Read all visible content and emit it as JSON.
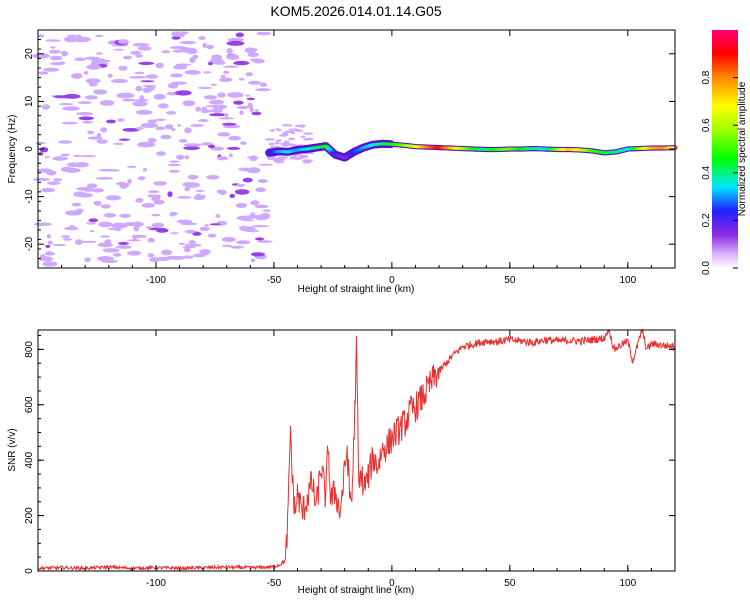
{
  "title": "KOM5.2026.014.01.14.G05",
  "chart_data": [
    {
      "type": "heatmap",
      "title": "KOM5.2026.014.01.14.G05",
      "xlabel": "Height of straight line (km)",
      "ylabel": "Frequency (Hz)",
      "xlim": [
        -150,
        120
      ],
      "ylim": [
        -25,
        25
      ],
      "xticks": [
        -100,
        -50,
        0,
        50,
        100
      ],
      "yticks": [
        -20,
        -10,
        0,
        10,
        20
      ],
      "track": {
        "x": [
          -52,
          -48,
          -44,
          -40,
          -36,
          -32,
          -28,
          -24,
          -20,
          -16,
          -12,
          -8,
          -4,
          0,
          5,
          10,
          15,
          20,
          25,
          30,
          35,
          40,
          45,
          50,
          55,
          60,
          65,
          70,
          75,
          80,
          85,
          90,
          95,
          100,
          105,
          110,
          115,
          120
        ],
        "freq": [
          -0.8,
          -0.5,
          -0.6,
          -0.2,
          0.0,
          0.3,
          0.6,
          -1.2,
          -1.8,
          -0.6,
          0.3,
          0.9,
          1.1,
          1.0,
          0.8,
          0.5,
          0.4,
          0.3,
          0.2,
          0.1,
          0.0,
          -0.1,
          -0.1,
          0.0,
          0.0,
          0.1,
          0.0,
          -0.1,
          -0.1,
          -0.2,
          -0.4,
          -0.8,
          -0.6,
          0.0,
          0.1,
          0.2,
          0.2,
          0.3
        ],
        "amplitude": [
          0.2,
          0.3,
          0.35,
          0.3,
          0.35,
          0.4,
          0.45,
          0.2,
          0.15,
          0.25,
          0.3,
          0.35,
          0.4,
          0.45,
          0.55,
          0.65,
          0.8,
          0.9,
          0.75,
          0.6,
          0.45,
          0.4,
          0.5,
          0.55,
          0.45,
          0.4,
          0.35,
          0.55,
          0.75,
          0.65,
          0.5,
          0.45,
          0.4,
          0.35,
          0.55,
          0.75,
          0.8,
          0.65
        ]
      },
      "colorbar": {
        "label": "Normalized spectral amplitude",
        "range": [
          0,
          1
        ],
        "ticks": [
          0.0,
          0.2,
          0.4,
          0.6,
          0.8
        ],
        "tick_labels": [
          "0.0",
          "0.2",
          "0.4",
          "0.6",
          "0.8"
        ]
      }
    },
    {
      "type": "line",
      "xlabel": "Height of straight line (km)",
      "ylabel": "SNR (v/v)",
      "xlim": [
        -150,
        120
      ],
      "ylim": [
        0,
        870
      ],
      "xticks": [
        -100,
        -50,
        0,
        50,
        100
      ],
      "yticks": [
        0,
        200,
        400,
        600,
        800
      ],
      "color": "#e83030",
      "series": [
        {
          "name": "SNR",
          "x": [
            -150,
            -140,
            -130,
            -120,
            -110,
            -100,
            -90,
            -80,
            -70,
            -60,
            -50,
            -47,
            -45,
            -44,
            -43,
            -42,
            -41,
            -40,
            -38,
            -36,
            -34,
            -32,
            -30,
            -28,
            -27,
            -26,
            -24,
            -22,
            -20,
            -19,
            -18,
            -17,
            -16,
            -15,
            -14,
            -13,
            -12,
            -10,
            -8,
            -6,
            -4,
            -2,
            0,
            2,
            4,
            6,
            8,
            10,
            14,
            18,
            22,
            26,
            30,
            35,
            40,
            45,
            50,
            55,
            60,
            65,
            70,
            75,
            80,
            85,
            90,
            92,
            94,
            96,
            98,
            100,
            102,
            104,
            106,
            108,
            110,
            115,
            120
          ],
          "y": [
            10,
            12,
            10,
            14,
            10,
            12,
            10,
            12,
            14,
            12,
            15,
            25,
            40,
            200,
            520,
            300,
            210,
            280,
            210,
            260,
            320,
            230,
            380,
            260,
            470,
            250,
            290,
            210,
            360,
            450,
            280,
            250,
            500,
            800,
            290,
            360,
            300,
            340,
            410,
            380,
            440,
            450,
            480,
            500,
            520,
            540,
            580,
            590,
            640,
            700,
            740,
            780,
            810,
            820,
            830,
            828,
            835,
            830,
            825,
            835,
            830,
            832,
            830,
            835,
            840,
            880,
            800,
            810,
            820,
            830,
            760,
            810,
            870,
            800,
            820,
            815,
            810
          ]
        }
      ]
    }
  ]
}
